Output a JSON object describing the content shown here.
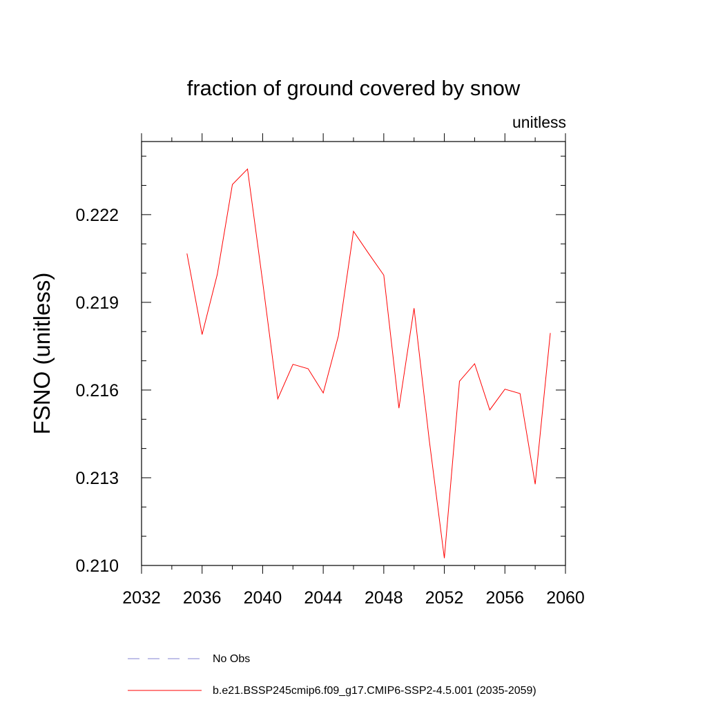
{
  "chart_data": {
    "type": "line",
    "title": "fraction of ground covered by snow",
    "units_label": "unitless",
    "ylabel": "FSNO  (unitless)",
    "xlabel": "",
    "xlim": [
      2032,
      2060
    ],
    "ylim": [
      0.21,
      0.2245
    ],
    "x_ticks": [
      2032,
      2036,
      2040,
      2044,
      2048,
      2052,
      2056,
      2060
    ],
    "x_tick_labels": [
      "2032",
      "2036",
      "2040",
      "2044",
      "2048",
      "2052",
      "2056",
      "2060"
    ],
    "y_ticks": [
      0.21,
      0.213,
      0.216,
      0.219,
      0.222
    ],
    "y_tick_labels": [
      "0.210",
      "0.213",
      "0.216",
      "0.219",
      "0.222"
    ],
    "grid": false,
    "legend_position": "bottom",
    "legend": [
      {
        "label": "No Obs",
        "color": "#8080d0",
        "style": "dashed"
      },
      {
        "label": "b.e21.BSSP245cmip6.f09_g17.CMIP6-SSP2-4.5.001 (2035-2059)",
        "color": "#ff0000",
        "style": "solid"
      }
    ],
    "series": [
      {
        "name": "b.e21.BSSP245cmip6.f09_g17.CMIP6-SSP2-4.5.001 (2035-2059)",
        "color": "#ff0000",
        "x": [
          2035,
          2036,
          2037,
          2038,
          2039,
          2040,
          2041,
          2042,
          2043,
          2044,
          2045,
          2046,
          2047,
          2048,
          2049,
          2050,
          2051,
          2052,
          2053,
          2054,
          2055,
          2056,
          2057,
          2058,
          2059
        ],
        "values": [
          0.22067,
          0.2179,
          0.21995,
          0.22303,
          0.22356,
          0.2197,
          0.2157,
          0.21688,
          0.21673,
          0.2159,
          0.21785,
          0.22143,
          0.22067,
          0.21993,
          0.21538,
          0.2188,
          0.2143,
          0.21025,
          0.2163,
          0.2169,
          0.21532,
          0.21603,
          0.21588,
          0.21278,
          0.21795
        ]
      }
    ]
  }
}
